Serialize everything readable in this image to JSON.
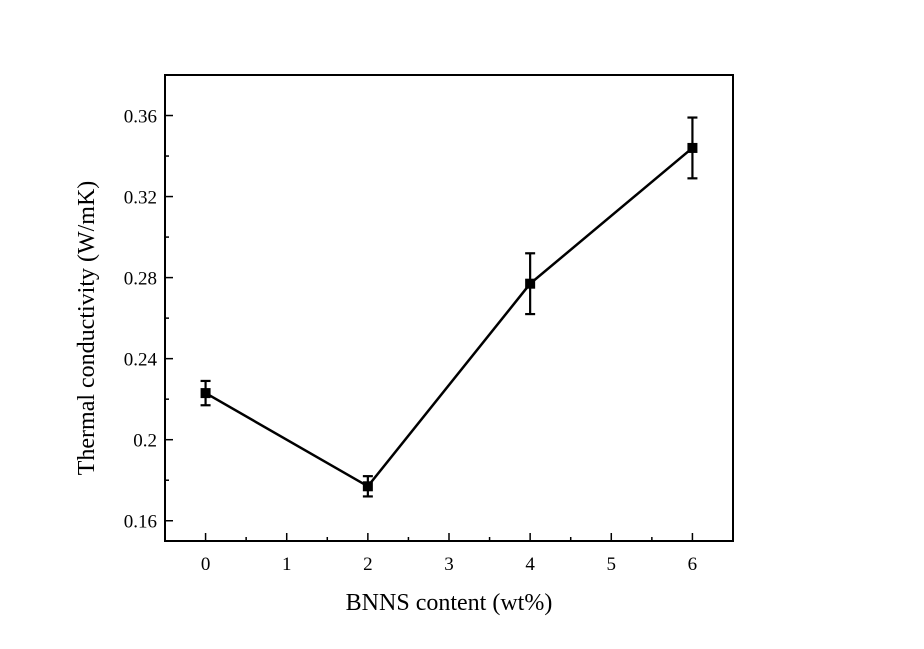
{
  "chart_data": {
    "type": "line",
    "x_label": "BNNS content (wt%)",
    "y_label": "Thermal conductivity (W/mK)",
    "x": [
      0,
      2,
      4,
      6
    ],
    "series": [
      {
        "color": "#000000",
        "values": [
          0.223,
          0.177,
          0.277,
          0.344
        ],
        "errors": [
          0.006,
          0.005,
          0.015,
          0.015
        ]
      }
    ],
    "xlim": [
      -0.5,
      6.5
    ],
    "ylim": [
      0.15,
      0.38
    ],
    "xticks": [
      0,
      1,
      2,
      3,
      4,
      5,
      6
    ],
    "yticks": [
      0.16,
      0.2,
      0.24,
      0.28,
      0.32,
      0.36
    ],
    "xminorticks": [
      -0.5,
      0.5,
      1.5,
      2.5,
      3.5,
      4.5,
      5.5,
      6.5
    ],
    "yminorticks": [
      0.18,
      0.22,
      0.26,
      0.3,
      0.34,
      0.38
    ],
    "grid": false
  }
}
